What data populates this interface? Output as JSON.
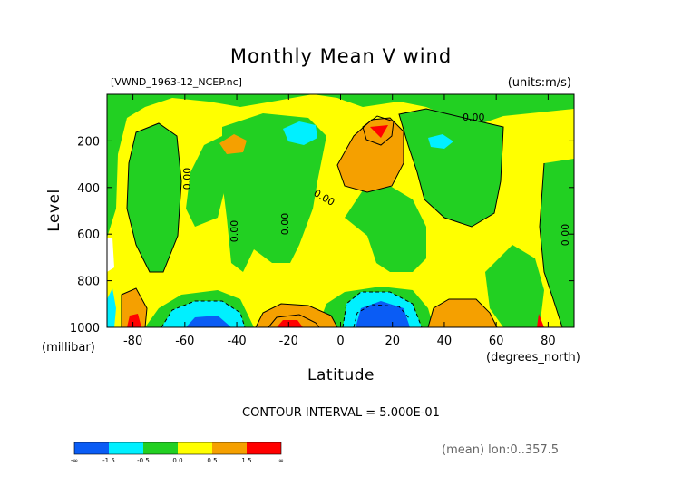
{
  "chart_data": {
    "type": "heatmap",
    "title": "Monthly Mean V wind",
    "file_label": "[VWND_1963-12_NCEP.nc]",
    "units_label": "(units:m/s)",
    "xlabel": "Latitude",
    "x_unit_label": "(degrees_north)",
    "ylabel": "Level",
    "y_unit_label": "(millibar)",
    "xlim": [
      -90,
      90
    ],
    "ylim": [
      1000,
      0
    ],
    "x_ticks": [
      -80,
      -60,
      -40,
      -20,
      0,
      20,
      40,
      60,
      80
    ],
    "x_tick_labels": [
      "-80",
      "-60",
      "-40",
      "-20",
      "0",
      "20",
      "40",
      "60",
      "80"
    ],
    "y_ticks": [
      200,
      400,
      600,
      800,
      1000
    ],
    "y_tick_labels": [
      "200",
      "400",
      "600",
      "800",
      "1000"
    ],
    "contour_interval_label": "CONTOUR INTERVAL = 5.000E-01",
    "contour_labels": [
      "0.00",
      "0.00",
      "0.00",
      "0.00",
      "0.00",
      "0.00"
    ],
    "footer_label": "(mean) lon:0..357.5",
    "colorbar": {
      "colors": [
        "#0a5cf5",
        "#00f0ff",
        "#22d022",
        "#ffff00",
        "#f5a000",
        "#ff0000"
      ],
      "labels": [
        "-∞",
        "-1.5",
        "-0.5",
        "0.0",
        "0.5",
        "1.5",
        "∞"
      ]
    },
    "regions": [
      {
        "level": "positive_weak",
        "color": "#ffff00",
        "approx": "broad background band, mid latitudes and tropics"
      },
      {
        "level": "negative_weak",
        "color": "#22d022",
        "approx": "upper troposphere bands near -80, -40..-10, 30..60, 80..90"
      },
      {
        "level": "positive_strong",
        "color": "#f5a000",
        "approx": "near 15N at 150-350 mb; near surface at -25, 40"
      },
      {
        "level": "positive_max",
        "color": "#ff0000",
        "approx": "15N 160 mb; -82 and -20 near 1000 mb"
      },
      {
        "level": "negative_strong",
        "color": "#00f0ff",
        "approx": "-15N 150 mb; 25N 150 mb; -50 and 15 near surface"
      },
      {
        "level": "negative_max",
        "color": "#0a5cf5",
        "approx": "-50 and 15N near 1000 mb"
      }
    ]
  }
}
